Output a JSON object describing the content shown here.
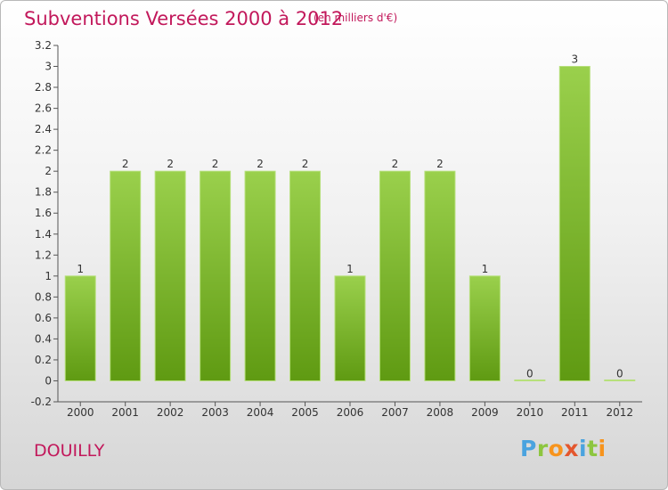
{
  "title": "Subventions Versées 2000 à 2012",
  "subtitle": "(en milliers d'€)",
  "place": "DOUILLY",
  "logo": {
    "letters": [
      {
        "ch": "P",
        "color": "#4aa3df"
      },
      {
        "ch": "r",
        "color": "#8dc63f"
      },
      {
        "ch": "o",
        "color": "#f7941d"
      },
      {
        "ch": "x",
        "color": "#e4572e"
      },
      {
        "ch": "i",
        "color": "#4aa3df"
      },
      {
        "ch": "t",
        "color": "#8dc63f"
      },
      {
        "ch": "i",
        "color": "#f7941d"
      }
    ]
  },
  "chart_data": {
    "type": "bar",
    "categories": [
      "2000",
      "2001",
      "2002",
      "2003",
      "2004",
      "2005",
      "2006",
      "2007",
      "2008",
      "2009",
      "2010",
      "2011",
      "2012"
    ],
    "values": [
      1,
      2,
      2,
      2,
      2,
      2,
      1,
      2,
      2,
      1,
      0,
      3,
      0
    ],
    "data_labels": [
      "1",
      "2",
      "2",
      "2",
      "2",
      "2",
      "1",
      "2",
      "2",
      "1",
      "0",
      "3",
      "0"
    ],
    "title": "Subventions Versées 2000 à 2012",
    "xlabel": "",
    "ylabel": "",
    "ylim": [
      -0.2,
      3.2
    ],
    "yticks": [
      -0.2,
      0,
      0.2,
      0.4,
      0.6,
      0.8,
      1,
      1.2,
      1.4,
      1.6,
      1.8,
      2,
      2.2,
      2.4,
      2.6,
      2.8,
      3,
      3.2
    ],
    "ytick_labels": [
      "-0.2",
      "0",
      "0.2",
      "0.4",
      "0.6",
      "0.8",
      "1",
      "1.2",
      "1.4",
      "1.6",
      "1.8",
      "2",
      "2.2",
      "2.4",
      "2.6",
      "2.8",
      "3",
      "3.2"
    ],
    "grid": false,
    "colors": {
      "bar_light": "#9ad04c",
      "bar_dark": "#5f9a12",
      "axis": "#555555"
    }
  }
}
